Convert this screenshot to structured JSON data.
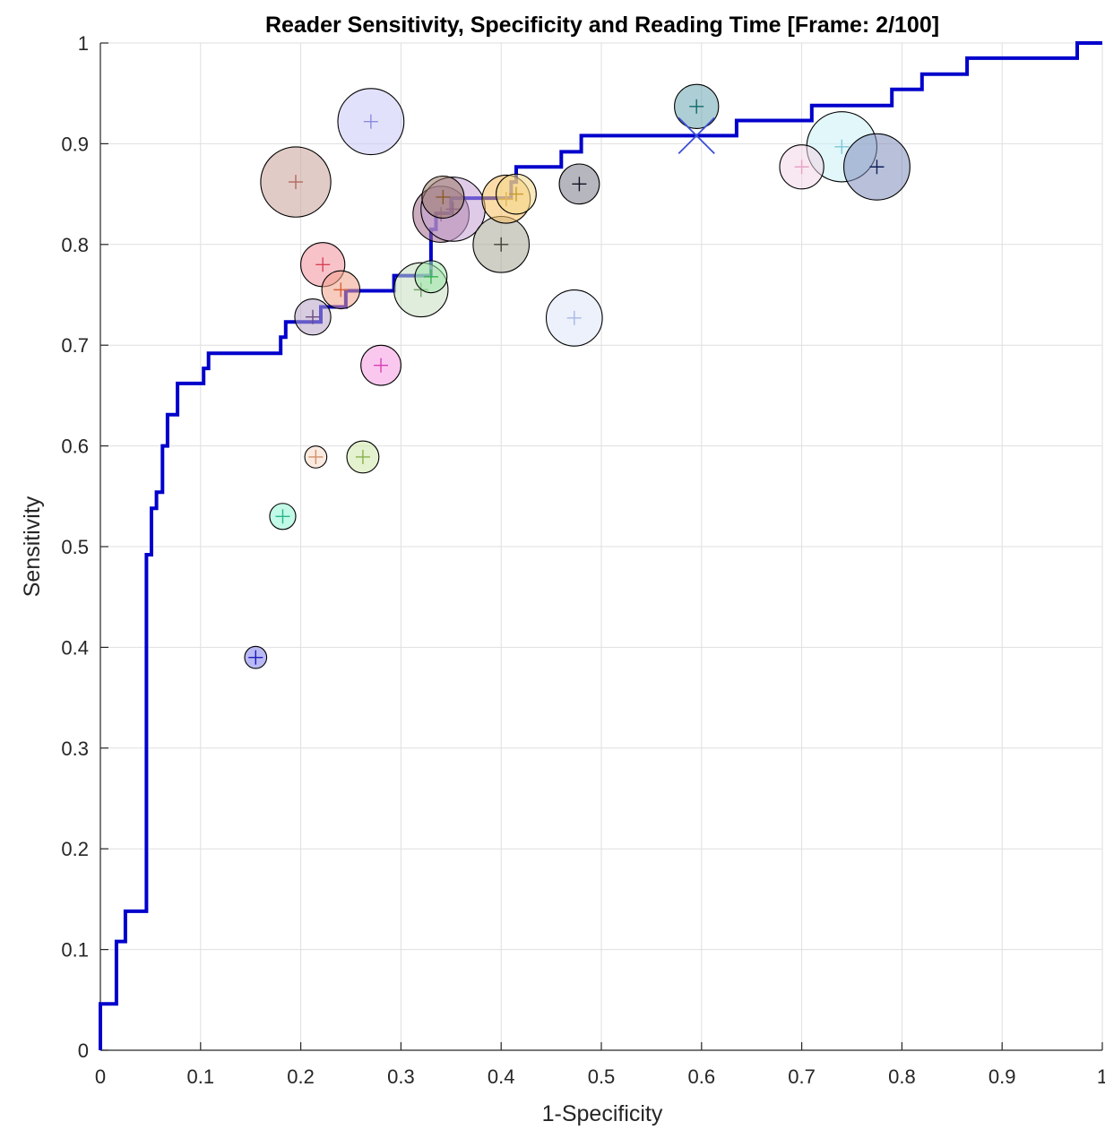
{
  "chart_data": {
    "type": "scatter",
    "title": "Reader Sensitivity, Specificity and Reading Time [Frame:  2/100]",
    "xlabel": "1-Specificity",
    "ylabel": "Sensitivity",
    "xlim": [
      0,
      1
    ],
    "ylim": [
      0,
      1
    ],
    "xticks": [
      "0",
      "0.1",
      "0.2",
      "0.3",
      "0.4",
      "0.5",
      "0.6",
      "0.7",
      "0.8",
      "0.9",
      "1"
    ],
    "yticks": [
      "0",
      "0.1",
      "0.2",
      "0.3",
      "0.4",
      "0.5",
      "0.6",
      "0.7",
      "0.8",
      "0.9",
      "1"
    ],
    "grid": true,
    "roc_curve": {
      "color": "#0000cc",
      "points": [
        [
          0,
          0
        ],
        [
          0,
          0.046
        ],
        [
          0.016,
          0.046
        ],
        [
          0.016,
          0.108
        ],
        [
          0.025,
          0.108
        ],
        [
          0.025,
          0.138
        ],
        [
          0.046,
          0.138
        ],
        [
          0.046,
          0.492
        ],
        [
          0.051,
          0.492
        ],
        [
          0.051,
          0.538
        ],
        [
          0.056,
          0.538
        ],
        [
          0.056,
          0.554
        ],
        [
          0.062,
          0.554
        ],
        [
          0.062,
          0.6
        ],
        [
          0.067,
          0.6
        ],
        [
          0.067,
          0.631
        ],
        [
          0.077,
          0.631
        ],
        [
          0.077,
          0.662
        ],
        [
          0.103,
          0.662
        ],
        [
          0.103,
          0.677
        ],
        [
          0.108,
          0.677
        ],
        [
          0.108,
          0.692
        ],
        [
          0.18,
          0.692
        ],
        [
          0.18,
          0.708
        ],
        [
          0.185,
          0.708
        ],
        [
          0.185,
          0.723
        ],
        [
          0.22,
          0.723
        ],
        [
          0.22,
          0.738
        ],
        [
          0.245,
          0.738
        ],
        [
          0.245,
          0.754
        ],
        [
          0.293,
          0.754
        ],
        [
          0.293,
          0.769
        ],
        [
          0.33,
          0.769
        ],
        [
          0.33,
          0.815
        ],
        [
          0.335,
          0.815
        ],
        [
          0.335,
          0.831
        ],
        [
          0.35,
          0.831
        ],
        [
          0.35,
          0.846
        ],
        [
          0.41,
          0.846
        ],
        [
          0.41,
          0.862
        ],
        [
          0.415,
          0.862
        ],
        [
          0.415,
          0.877
        ],
        [
          0.46,
          0.877
        ],
        [
          0.46,
          0.892
        ],
        [
          0.48,
          0.892
        ],
        [
          0.48,
          0.908
        ],
        [
          0.635,
          0.908
        ],
        [
          0.635,
          0.923
        ],
        [
          0.71,
          0.923
        ],
        [
          0.71,
          0.938
        ],
        [
          0.79,
          0.938
        ],
        [
          0.79,
          0.954
        ],
        [
          0.82,
          0.954
        ],
        [
          0.82,
          0.969
        ],
        [
          0.865,
          0.969
        ],
        [
          0.865,
          0.985
        ],
        [
          0.975,
          0.985
        ],
        [
          0.975,
          1
        ],
        [
          1,
          1
        ]
      ]
    },
    "operating_point": {
      "x": 0.595,
      "y": 0.908,
      "color": "#3b4fd6"
    },
    "readers": [
      {
        "x": 0.195,
        "y": 0.862,
        "size": 35,
        "color": "#c9a098",
        "mark": "#b06a60"
      },
      {
        "x": 0.27,
        "y": 0.922,
        "size": 33,
        "color": "#c8c8f8",
        "mark": "#8c8ce0"
      },
      {
        "x": 0.595,
        "y": 0.937,
        "size": 22,
        "color": "#6aa6b0",
        "mark": "#0f6b6b"
      },
      {
        "x": 0.74,
        "y": 0.897,
        "size": 35,
        "color": "#c8f0f6",
        "mark": "#7ec6d6"
      },
      {
        "x": 0.775,
        "y": 0.877,
        "size": 33,
        "color": "#7f8cbb",
        "mark": "#10205a"
      },
      {
        "x": 0.7,
        "y": 0.877,
        "size": 22,
        "color": "#f3d6e6",
        "mark": "#e8a3c8"
      },
      {
        "x": 0.222,
        "y": 0.78,
        "size": 22,
        "color": "#f2909c",
        "mark": "#d84055"
      },
      {
        "x": 0.24,
        "y": 0.755,
        "size": 19,
        "color": "#f0a088",
        "mark": "#d8603a"
      },
      {
        "x": 0.212,
        "y": 0.728,
        "size": 18,
        "color": "#b8a4c6",
        "mark": "#6a4a82"
      },
      {
        "x": 0.28,
        "y": 0.68,
        "size": 20,
        "color": "#f59ae0",
        "mark": "#d83cb4"
      },
      {
        "x": 0.215,
        "y": 0.589,
        "size": 11,
        "color": "#f8d8c4",
        "mark": "#d0906a"
      },
      {
        "x": 0.262,
        "y": 0.589,
        "size": 16,
        "color": "#cde8a8",
        "mark": "#8ab04c"
      },
      {
        "x": 0.182,
        "y": 0.53,
        "size": 13,
        "color": "#8ff4d4",
        "mark": "#26b88a"
      },
      {
        "x": 0.155,
        "y": 0.39,
        "size": 11,
        "color": "#8080ec",
        "mark": "#1c1cb8"
      },
      {
        "x": 0.32,
        "y": 0.755,
        "size": 27,
        "color": "#c6dcc0",
        "mark": "#74a468"
      },
      {
        "x": 0.33,
        "y": 0.768,
        "size": 16,
        "color": "#9ce8a8",
        "mark": "#36b050"
      },
      {
        "x": 0.34,
        "y": 0.83,
        "size": 28,
        "color": "#a06a8a",
        "mark": "#6a2a58"
      },
      {
        "x": 0.352,
        "y": 0.835,
        "size": 32,
        "color": "#c4a0d4",
        "mark": "#8a52a6"
      },
      {
        "x": 0.342,
        "y": 0.847,
        "size": 21,
        "color": "#9a7a6a",
        "mark": "#8a5a2a"
      },
      {
        "x": 0.4,
        "y": 0.8,
        "size": 28,
        "color": "#a8a898",
        "mark": "#404036"
      },
      {
        "x": 0.405,
        "y": 0.845,
        "size": 24,
        "color": "#f8c060",
        "mark": "#d08a10"
      },
      {
        "x": 0.415,
        "y": 0.85,
        "size": 20,
        "color": "#f4d888",
        "mark": "#c89a30"
      },
      {
        "x": 0.478,
        "y": 0.86,
        "size": 20,
        "color": "#7a7a8a",
        "mark": "#101020"
      },
      {
        "x": 0.473,
        "y": 0.727,
        "size": 28,
        "color": "#dde6fa",
        "mark": "#a8b8e4"
      }
    ]
  }
}
